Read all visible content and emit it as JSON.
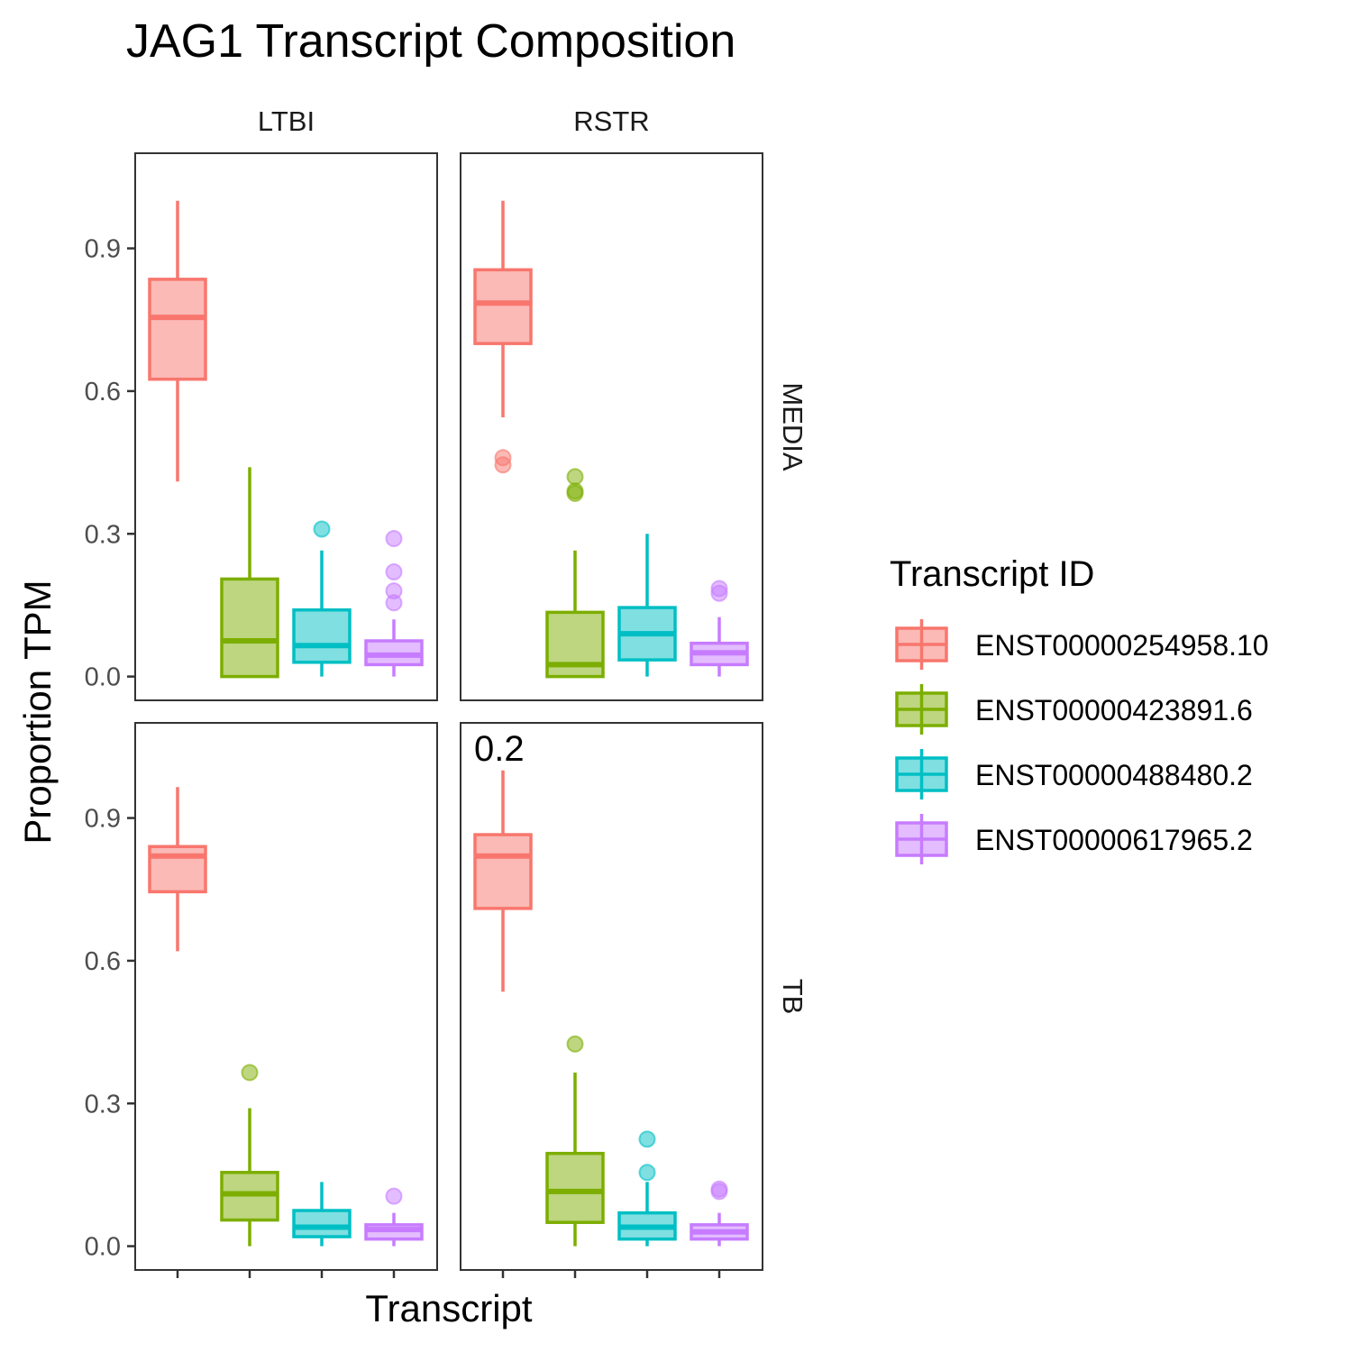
{
  "chart_data": {
    "type": "boxplot",
    "title": "JAG1 Transcript Composition",
    "xlabel": "Transcript",
    "ylabel": "Proportion TPM",
    "ylim": [
      -0.05,
      1.1
    ],
    "yticks": [
      0.0,
      0.3,
      0.6,
      0.9
    ],
    "ytick_labels": [
      "0.0",
      "0.3",
      "0.6",
      "0.9"
    ],
    "facet_cols": [
      "LTBI",
      "RSTR"
    ],
    "facet_rows": [
      "MEDIA",
      "TB"
    ],
    "legend": {
      "title": "Transcript ID",
      "position": "right",
      "entries": [
        "ENST00000254958.10",
        "ENST00000423891.6",
        "ENST00000488480.2",
        "ENST00000617965.2"
      ]
    },
    "colors": [
      "#F8766D",
      "#7CAE00",
      "#00BFC4",
      "#C77CFF"
    ],
    "grid": false,
    "panels": [
      {
        "col": "LTBI",
        "row": "MEDIA",
        "boxes": [
          {
            "min": 0.41,
            "q1": 0.625,
            "median": 0.755,
            "q3": 0.835,
            "max": 1.0,
            "outliers": []
          },
          {
            "min": 0.0,
            "q1": 0.0,
            "median": 0.075,
            "q3": 0.205,
            "max": 0.44,
            "outliers": []
          },
          {
            "min": 0.0,
            "q1": 0.03,
            "median": 0.065,
            "q3": 0.14,
            "max": 0.265,
            "outliers": [
              0.31
            ]
          },
          {
            "min": 0.0,
            "q1": 0.025,
            "median": 0.045,
            "q3": 0.075,
            "max": 0.12,
            "outliers": [
              0.29,
              0.22,
              0.18,
              0.155
            ]
          }
        ]
      },
      {
        "col": "RSTR",
        "row": "MEDIA",
        "boxes": [
          {
            "min": 0.545,
            "q1": 0.7,
            "median": 0.785,
            "q3": 0.855,
            "max": 1.0,
            "outliers": [
              0.46,
              0.445
            ]
          },
          {
            "min": 0.0,
            "q1": 0.0,
            "median": 0.025,
            "q3": 0.135,
            "max": 0.265,
            "outliers": [
              0.42,
              0.39,
              0.385
            ]
          },
          {
            "min": 0.0,
            "q1": 0.035,
            "median": 0.09,
            "q3": 0.145,
            "max": 0.3,
            "outliers": []
          },
          {
            "min": 0.0,
            "q1": 0.025,
            "median": 0.05,
            "q3": 0.07,
            "max": 0.125,
            "outliers": [
              0.185,
              0.175
            ]
          }
        ]
      },
      {
        "col": "LTBI",
        "row": "TB",
        "boxes": [
          {
            "min": 0.62,
            "q1": 0.745,
            "median": 0.82,
            "q3": 0.84,
            "max": 0.965,
            "outliers": []
          },
          {
            "min": 0.0,
            "q1": 0.055,
            "median": 0.11,
            "q3": 0.155,
            "max": 0.29,
            "outliers": [
              0.365
            ]
          },
          {
            "min": 0.0,
            "q1": 0.02,
            "median": 0.04,
            "q3": 0.075,
            "max": 0.135,
            "outliers": []
          },
          {
            "min": 0.0,
            "q1": 0.015,
            "median": 0.035,
            "q3": 0.045,
            "max": 0.07,
            "outliers": [
              0.105
            ]
          }
        ]
      },
      {
        "col": "RSTR",
        "row": "TB",
        "boxes": [
          {
            "min": 0.535,
            "q1": 0.71,
            "median": 0.82,
            "q3": 0.865,
            "max": 1.0,
            "outliers": []
          },
          {
            "min": 0.0,
            "q1": 0.05,
            "median": 0.115,
            "q3": 0.195,
            "max": 0.365,
            "outliers": [
              0.425
            ]
          },
          {
            "min": 0.0,
            "q1": 0.015,
            "median": 0.04,
            "q3": 0.07,
            "max": 0.135,
            "outliers": [
              0.225,
              0.155
            ]
          },
          {
            "min": 0.0,
            "q1": 0.015,
            "median": 0.03,
            "q3": 0.045,
            "max": 0.07,
            "outliers": [
              0.12,
              0.115
            ]
          }
        ],
        "annotation": "0.2"
      }
    ]
  }
}
